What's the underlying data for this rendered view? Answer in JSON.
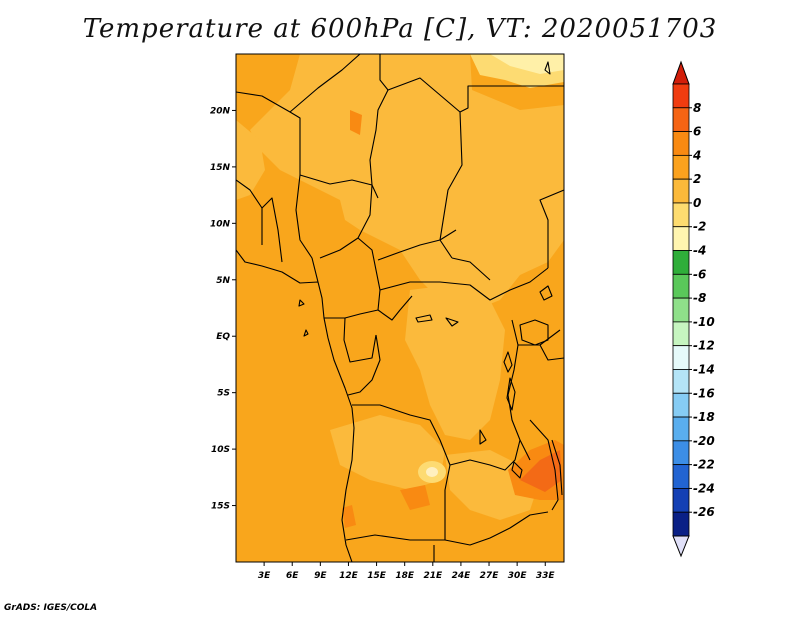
{
  "title": "Temperature at 600hPa [C], VT: 2020051703",
  "credit": "GrADS: IGES/COLA",
  "map": {
    "lon_range": [
      0,
      35
    ],
    "lat_range": [
      -20,
      25
    ],
    "lon_ticks": [
      "3E",
      "6E",
      "9E",
      "12E",
      "15E",
      "18E",
      "21E",
      "24E",
      "27E",
      "30E",
      "33E"
    ],
    "lat_ticks": [
      "20N",
      "15N",
      "10N",
      "5N",
      "EQ",
      "5S",
      "10S",
      "15S"
    ]
  },
  "colorbar": {
    "labels": [
      "8",
      "6",
      "4",
      "2",
      "0",
      "-2",
      "-4",
      "-6",
      "-8",
      "-10",
      "-12",
      "-14",
      "-16",
      "-18",
      "-20",
      "-22",
      "-24",
      "-26"
    ],
    "colors": [
      "#f03c10",
      "#f56414",
      "#f98a12",
      "#fba21e",
      "#fbb93a",
      "#fddc70",
      "#fff5b0",
      "#2fae3a",
      "#5ac85a",
      "#8fe08a",
      "#c6f5c0",
      "#e6fafa",
      "#b4e4f7",
      "#86ccf4",
      "#5aaeee",
      "#3c8ee6",
      "#2264d2",
      "#1440b4",
      "#0a2086"
    ],
    "top_color": "#d21e0a",
    "bottom_color": "#e0e0f8"
  }
}
